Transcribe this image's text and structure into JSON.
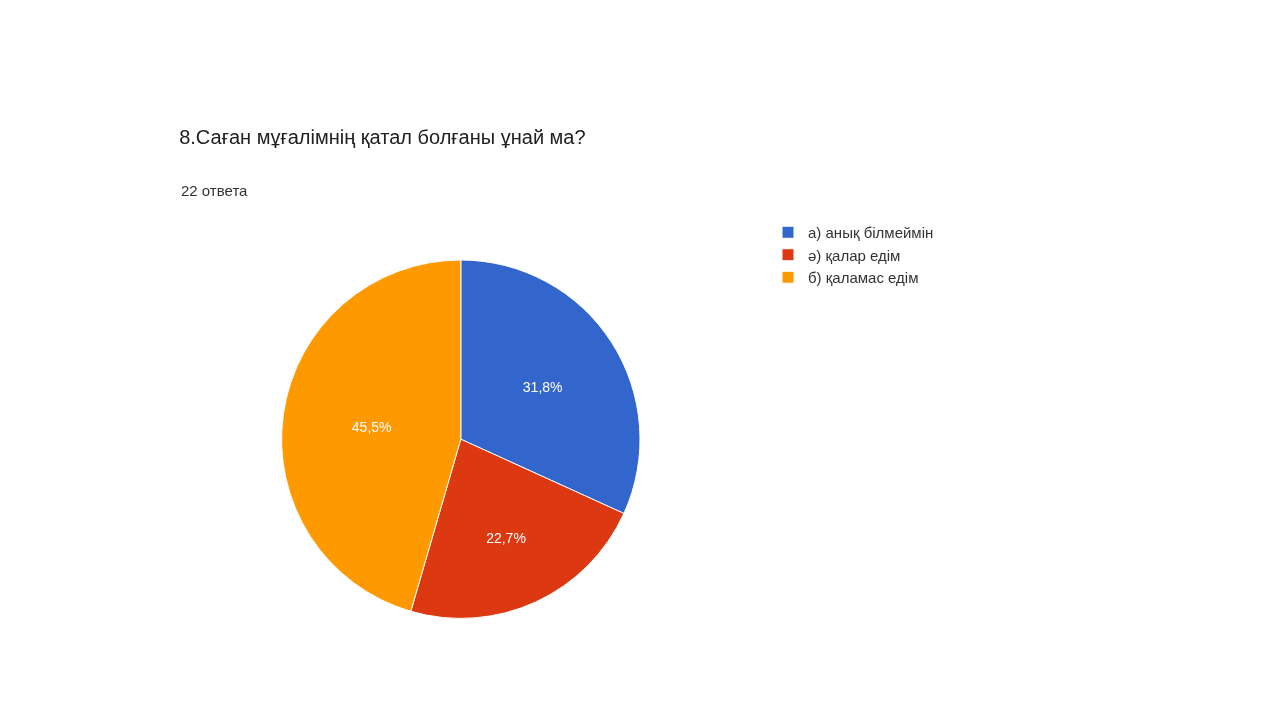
{
  "chart_data": {
    "type": "pie",
    "title": "8.Саған мұғалімнің қатал болғаны ұнай ма?",
    "subtitle": "22 ответа",
    "categories": [
      "а) анық білмеймін",
      "ә) қалар едім",
      "б) қаламас едім"
    ],
    "values": [
      31.8,
      22.7,
      45.5
    ],
    "colors": [
      "#3366cc",
      "#dc3912",
      "#ff9900"
    ],
    "value_labels": [
      "31,8%",
      "22,7%",
      "45,5%"
    ],
    "legend": "top right"
  }
}
